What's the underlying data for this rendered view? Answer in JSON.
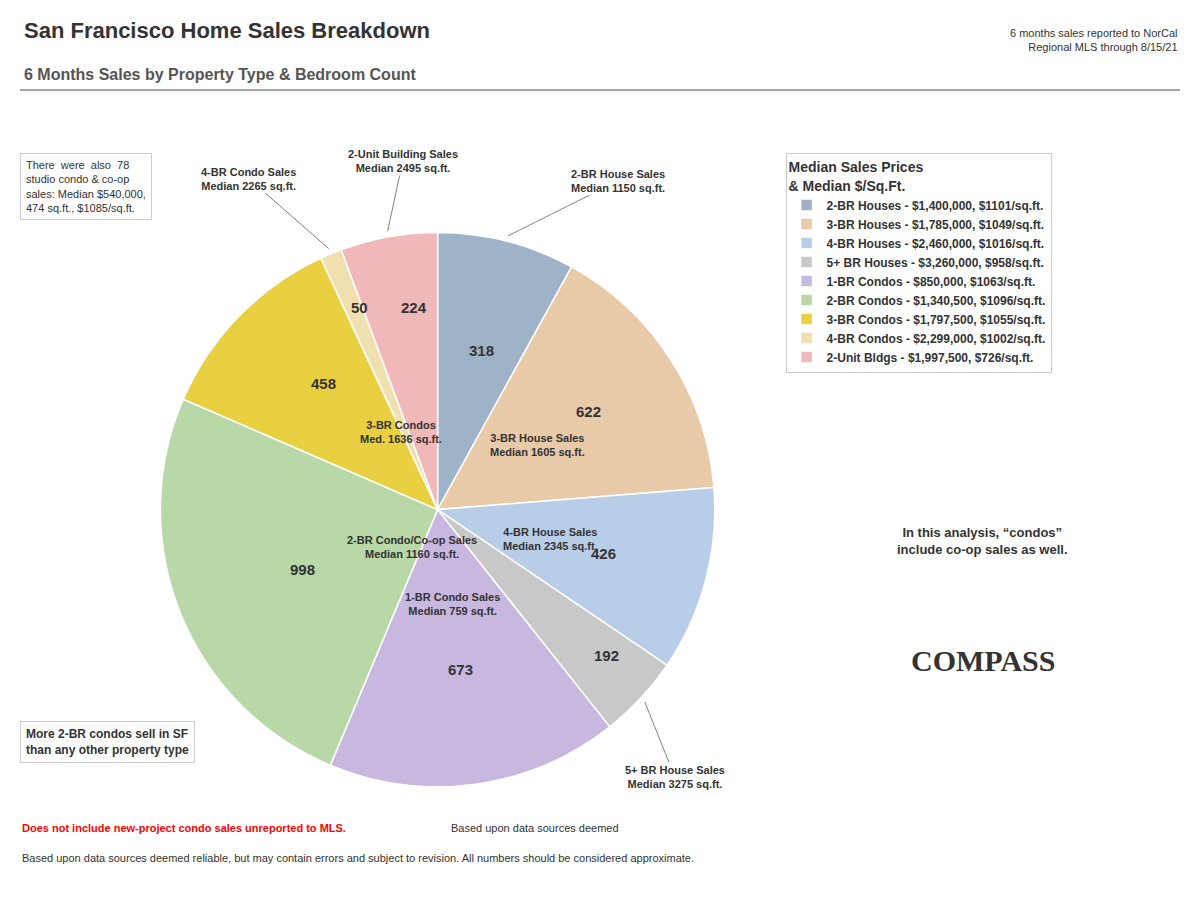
{
  "chart_data": {
    "type": "pie",
    "title": "San Francisco Home Sales Breakdown",
    "subtitle": "6 Months Sales by Property Type & Bedroom Count",
    "categories": [
      "2-BR Houses - $1,400,000, $1101/sq.ft.",
      "3-BR Houses - $1,785,000, $1049/sq.ft.",
      "4-BR Houses - $2,460,000, $1016/sq.ft.",
      "5+ BR Houses - $3,260,000, $958/sq.ft.",
      "1-BR Condos - $850,000, $1063/sq.ft.",
      "2-BR Condos - $1,340,500, $1096/sq.ft.",
      "3-BR Condos - $1,797,500, $1055/sq.ft.",
      "4-BR Condos - $2,299,000, $1002/sq.ft.",
      "2-Unit Bldgs - $1,997,500, $726/sq.ft."
    ],
    "values": [
      318,
      622,
      426,
      192,
      673,
      998,
      458,
      50,
      224
    ],
    "colors": [
      "#9eb3c8",
      "#e8c9a8",
      "#b8cde8",
      "#c8c8c8",
      "#c8b8e0",
      "#b8d8a8",
      "#e8d040",
      "#f0e0b0",
      "#f0b8b8"
    ],
    "data_labels": true,
    "legend": "right",
    "legend_title": "Median Sales Prices\n& Median $/Sq.Ft.",
    "annotations": [
      {
        "category": "2-BR Houses - $1,400,000, $1101/sq.ft.",
        "text": "2-BR House Sales\nMedian 1150 sq.ft."
      },
      {
        "category": "3-BR Houses - $1,785,000, $1049/sq.ft.",
        "text": "3-BR House Sales\nMedian 1605 sq.ft."
      },
      {
        "category": "4-BR Houses - $2,460,000, $1016/sq.ft.",
        "text": "4-BR House Sales\nMedian 2345 sq.ft."
      },
      {
        "category": "5+ BR Houses - $3,260,000, $958/sq.ft.",
        "text": "5+ BR House Sales\nMedian 3275 sq.ft."
      },
      {
        "category": "1-BR Condos - $850,000, $1063/sq.ft.",
        "text": "1-BR Condo Sales\nMedian 759 sq.ft."
      },
      {
        "category": "2-BR Condos - $1,340,500, $1096/sq.ft.",
        "text": "2-BR Condo/Co-op Sales\nMedian 1160 sq.ft."
      },
      {
        "category": "3-BR Condos - $1,797,500, $1055/sq.ft.",
        "text": "3-BR Condos\nMed. 1636 sq.ft."
      },
      {
        "category": "4-BR Condos - $2,299,000, $1002/sq.ft.",
        "text": "4-BR Condo Sales\nMedian 2265 sq.ft."
      },
      {
        "category": "2-Unit Bldgs - $1,997,500, $726/sq.ft.",
        "text": "2-Unit Building Sales\nMedian 2495 sq.ft."
      },
      {
        "text": "6 months sales reported to NorCal\nRegional MLS through 8/15/21"
      },
      {
        "text": "There  were  also  78\nstudio condo & co-op\nsales: Median $540,000,\n474 sq.ft., $1085/sq.ft."
      },
      {
        "text": "More 2-BR condos sell in SF\nthan any other property type"
      },
      {
        "text": "In this analysis, “condos”\ninclude co-op sales as well."
      },
      {
        "text": "COMPASS"
      },
      {
        "text": "Does not include new-project condo sales unreported to MLS.",
        "color": "red"
      },
      {
        "text": "Based upon data sources deemed"
      },
      {
        "text": "Based upon data sources deemed reliable, but may contain errors and subject to revision. All numbers should be considered approximate."
      }
    ]
  }
}
